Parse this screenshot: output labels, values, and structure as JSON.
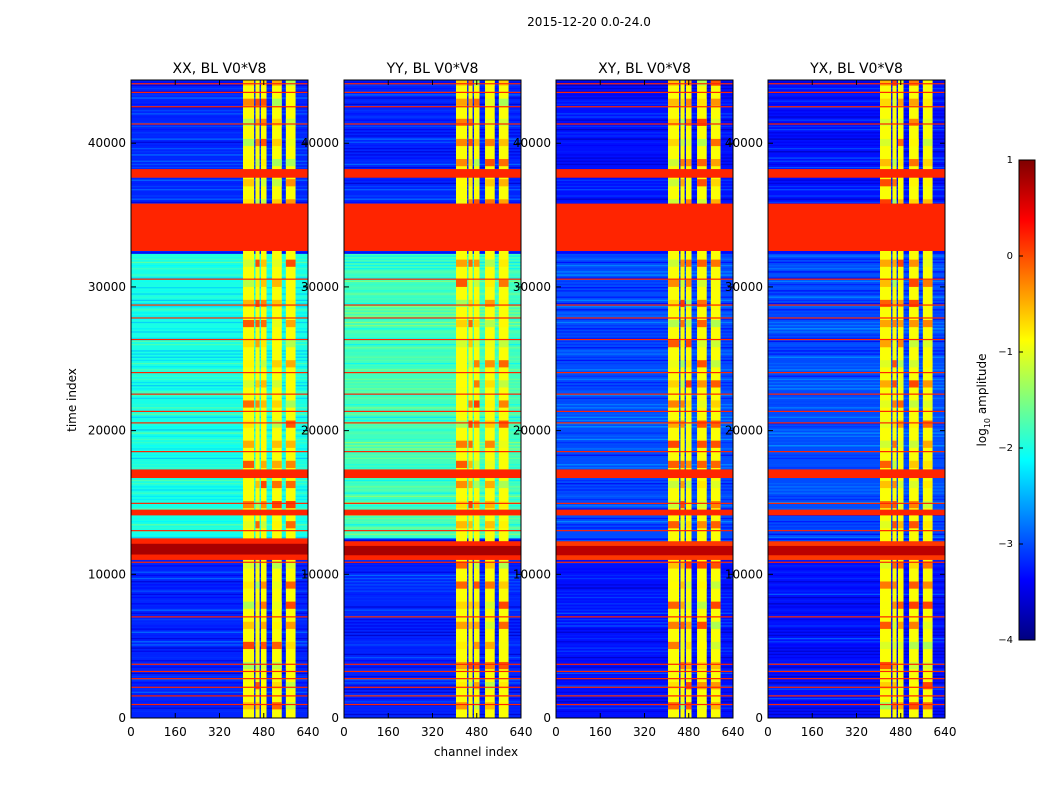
{
  "chart_data": {
    "type": "heatmap",
    "title": "2015-12-20 0.0-24.0",
    "xlabel": "channel index",
    "ylabel": "time index",
    "xlim": [
      0,
      640
    ],
    "ylim": [
      0,
      44400
    ],
    "x_ticks": [
      "0",
      "160",
      "320",
      "480",
      "640"
    ],
    "y_ticks": [
      "0",
      "10000",
      "20000",
      "30000",
      "40000"
    ],
    "colorbar": {
      "label_main": "log",
      "label_sub": "10",
      "label_rest": " amplitude",
      "range": [
        -4,
        1
      ],
      "ticks": [
        "1",
        "0",
        "−1",
        "−2",
        "−3",
        "−4"
      ],
      "colormap": [
        "#00007f",
        "#0000ff",
        "#007fff",
        "#00ffff",
        "#7fff7f",
        "#ffff00",
        "#ff7f00",
        "#ff0000",
        "#7f0000"
      ]
    },
    "panels": [
      {
        "title": "XX, BL V0*V8",
        "background_level": -3.2,
        "background_upper_level": -2.0,
        "background_upper_range": [
          12500,
          32300
        ],
        "band_channels": [
          [
            405,
            445
          ],
          [
            450,
            465
          ],
          [
            470,
            490
          ],
          [
            510,
            545
          ],
          [
            560,
            595
          ]
        ],
        "band_level": -0.9,
        "flagged_time_ranges": [
          [
            32500,
            35800
          ],
          [
            37600,
            38200
          ],
          [
            16700,
            17300
          ],
          [
            14100,
            14500
          ]
        ],
        "flag_level": 0.2,
        "flag_lines": [
          900,
          1500,
          2100,
          2700,
          3200,
          3700,
          7000,
          10800,
          13000,
          14900,
          18500,
          20500,
          21300,
          22500,
          24000,
          26300,
          27800,
          28700,
          30500,
          41300,
          42500,
          43500,
          44100
        ],
        "burst_range": [
          11000,
          12500
        ],
        "burst_level": 0.8
      },
      {
        "title": "YY, BL V0*V8",
        "background_level": -3.2,
        "background_upper_level": -1.8,
        "background_upper_range": [
          12500,
          32300
        ],
        "band_channels": [
          [
            405,
            445
          ],
          [
            450,
            465
          ],
          [
            470,
            490
          ],
          [
            510,
            545
          ],
          [
            560,
            595
          ]
        ],
        "band_level": -0.9,
        "flagged_time_ranges": [
          [
            32500,
            35800
          ],
          [
            37600,
            38200
          ],
          [
            16700,
            17300
          ],
          [
            14100,
            14500
          ]
        ],
        "flag_level": 0.2,
        "flag_lines": [
          900,
          1500,
          2100,
          2700,
          3200,
          3700,
          7000,
          10800,
          13000,
          14900,
          18500,
          20500,
          21300,
          22500,
          24000,
          26300,
          27800,
          28700,
          30500,
          41300,
          42500,
          43500,
          44100
        ],
        "burst_range": [
          11000,
          12300
        ],
        "burst_level": 0.8
      },
      {
        "title": "XY, BL V0*V8",
        "background_level": -3.3,
        "background_upper_level": -3.0,
        "background_upper_range": [
          12500,
          32300
        ],
        "band_channels": [
          [
            405,
            445
          ],
          [
            450,
            465
          ],
          [
            470,
            490
          ],
          [
            510,
            545
          ],
          [
            560,
            595
          ]
        ],
        "band_level": -0.9,
        "flagged_time_ranges": [
          [
            32500,
            35800
          ],
          [
            37600,
            38200
          ],
          [
            16700,
            17300
          ],
          [
            14100,
            14500
          ]
        ],
        "flag_level": 0.2,
        "flag_lines": [
          900,
          1500,
          2100,
          2700,
          3200,
          3700,
          7000,
          10800,
          13000,
          14900,
          18500,
          20500,
          21300,
          22500,
          24000,
          26300,
          27800,
          28700,
          30500,
          41300,
          42500,
          43500,
          44100
        ],
        "burst_range": [
          11000,
          12300
        ],
        "burst_level": 0.7
      },
      {
        "title": "YX, BL V0*V8",
        "background_level": -3.3,
        "background_upper_level": -3.0,
        "background_upper_range": [
          12500,
          32300
        ],
        "band_channels": [
          [
            405,
            445
          ],
          [
            450,
            465
          ],
          [
            470,
            490
          ],
          [
            510,
            545
          ],
          [
            560,
            595
          ]
        ],
        "band_level": -0.9,
        "flagged_time_ranges": [
          [
            32500,
            35800
          ],
          [
            37600,
            38200
          ],
          [
            16700,
            17300
          ],
          [
            14100,
            14500
          ]
        ],
        "flag_level": 0.2,
        "flag_lines": [
          900,
          1500,
          2100,
          2700,
          3200,
          3700,
          7000,
          10800,
          13000,
          14900,
          18500,
          20500,
          21300,
          22500,
          24000,
          26300,
          27800,
          28700,
          30500,
          41300,
          42500,
          43500,
          44100
        ],
        "burst_range": [
          11000,
          12300
        ],
        "burst_level": 0.7
      }
    ]
  }
}
